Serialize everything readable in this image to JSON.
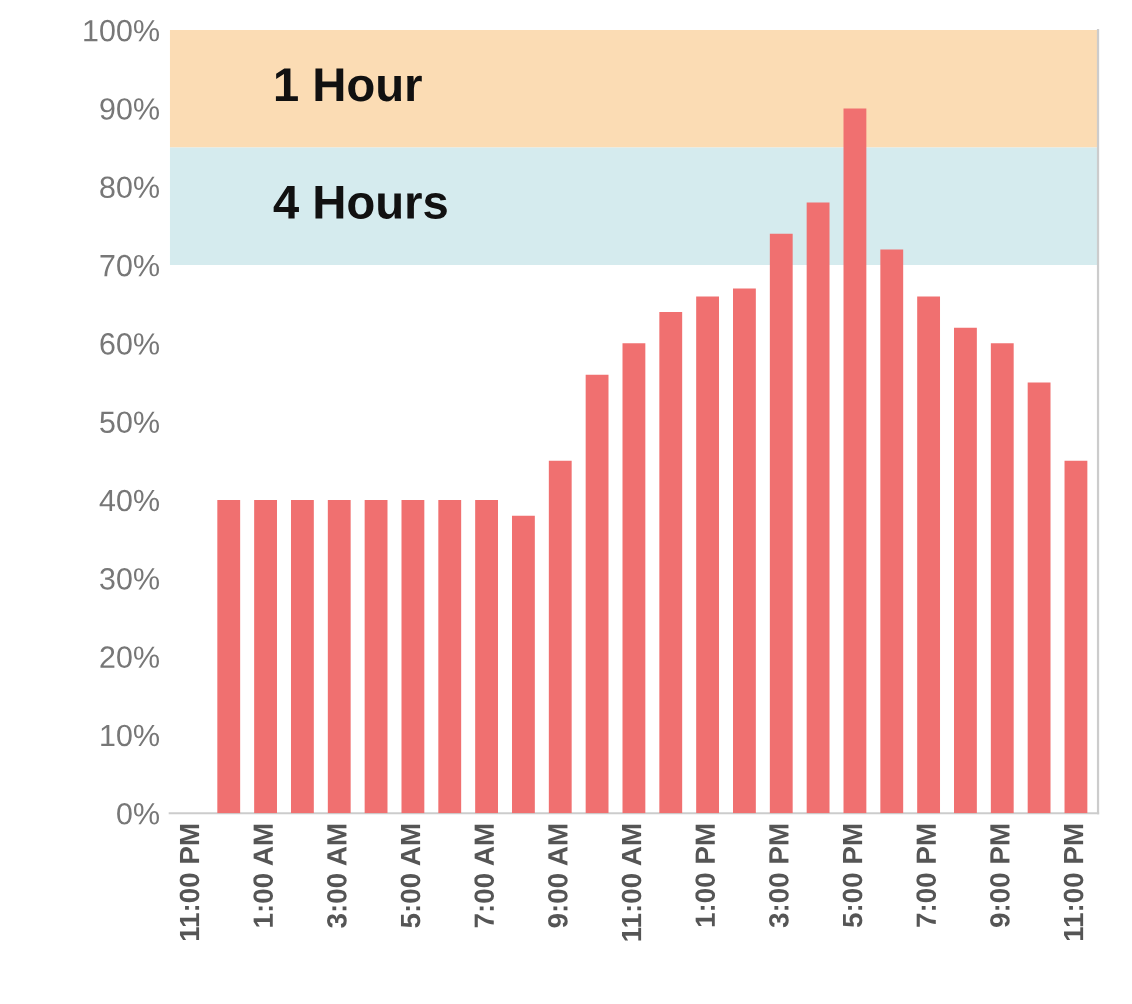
{
  "chart_data": {
    "type": "bar",
    "categories": [
      "11:00 PM",
      null,
      "1:00 AM",
      null,
      "3:00 AM",
      null,
      "5:00 AM",
      null,
      "7:00 AM",
      null,
      "9:00 AM",
      null,
      "11:00 AM",
      null,
      "1:00 PM",
      null,
      "3:00 PM",
      null,
      "5:00 PM",
      null,
      "7:00 PM",
      null,
      "9:00 PM",
      null,
      "11:00 PM"
    ],
    "values": [
      null,
      40,
      40,
      40,
      40,
      40,
      40,
      40,
      40,
      38,
      45,
      56,
      60,
      64,
      66,
      67,
      74,
      78,
      90,
      72,
      66,
      62,
      60,
      55,
      45
    ],
    "color": "#f07070",
    "ylim": [
      0,
      100
    ],
    "yticks": [
      {
        "value": 0,
        "label": "0%"
      },
      {
        "value": 10,
        "label": "10%"
      },
      {
        "value": 20,
        "label": "20%"
      },
      {
        "value": 30,
        "label": "30%"
      },
      {
        "value": 40,
        "label": "40%"
      },
      {
        "value": 50,
        "label": "50%"
      },
      {
        "value": 60,
        "label": "60%"
      },
      {
        "value": 70,
        "label": "70%"
      },
      {
        "value": 80,
        "label": "80%"
      },
      {
        "value": 90,
        "label": "90%"
      },
      {
        "value": 100,
        "label": "100%"
      }
    ],
    "bands": [
      {
        "axis": "y",
        "from": 85,
        "to": 100,
        "label": "1 Hour",
        "color": "#fbdcb4"
      },
      {
        "axis": "y",
        "from": 70,
        "to": 85,
        "label": "4 Hours",
        "color": "#d5ebee"
      }
    ],
    "grid": false
  }
}
